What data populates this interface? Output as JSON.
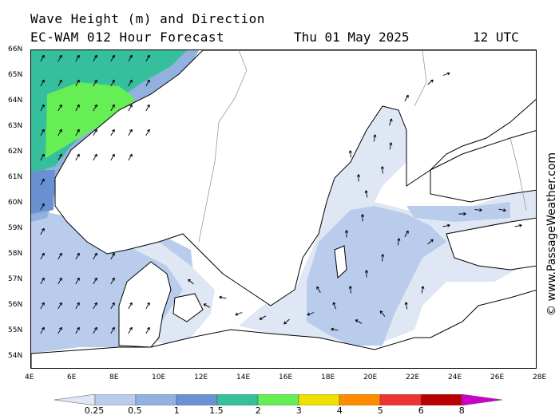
{
  "header": {
    "title": "Wave Height (m) and Direction",
    "subtitle": "EC-WAM 012 Hour Forecast",
    "date": "Thu 01 May 2025",
    "time": "12 UTC"
  },
  "copyright": "© www.PassageWeather.com",
  "axes": {
    "lat_labels": [
      "66N",
      "65N",
      "64N",
      "63N",
      "62N",
      "61N",
      "60N",
      "59N",
      "58N",
      "57N",
      "56N",
      "55N",
      "54N"
    ],
    "lon_labels": [
      "4E",
      "6E",
      "8E",
      "10E",
      "12E",
      "14E",
      "16E",
      "18E",
      "20E",
      "22E",
      "24E",
      "26E",
      "28E"
    ]
  },
  "legend": {
    "labels": [
      "0.25",
      "0.5",
      "1",
      "1.5",
      "2",
      "3",
      "4",
      "5",
      "6",
      "8"
    ],
    "colors": [
      "#dfe6f4",
      "#b9cceb",
      "#93b1df",
      "#6a92d2",
      "#35bf9c",
      "#66ee55",
      "#eee000",
      "#ff8c00",
      "#ee3333",
      "#bb0000",
      "#cc00cc"
    ]
  },
  "colors": {
    "land": "#ffffff",
    "sea_calm": "#ffffff",
    "coast": "#000000",
    "border": "#999999"
  }
}
